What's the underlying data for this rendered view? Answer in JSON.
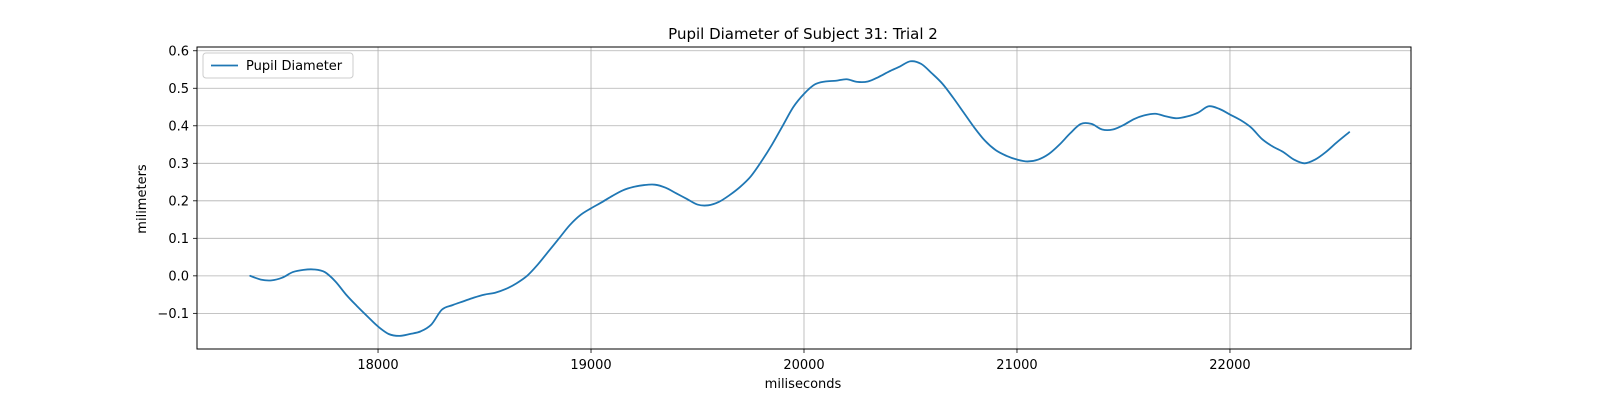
{
  "chart_data": {
    "type": "line",
    "title": "Pupil Diameter of Subject 31: Trial 2",
    "xlabel": "miliseconds",
    "ylabel": "milimeters",
    "xlim": [
      17150,
      22850
    ],
    "ylim": [
      -0.195,
      0.61
    ],
    "xticks": [
      18000,
      19000,
      20000,
      21000,
      22000
    ],
    "yticks": [
      -0.1,
      0.0,
      0.1,
      0.2,
      0.3,
      0.4,
      0.5,
      0.6
    ],
    "ytick_labels": [
      "−0.1",
      "0.0",
      "0.1",
      "0.2",
      "0.3",
      "0.4",
      "0.5",
      "0.6"
    ],
    "grid": true,
    "legend_position": "upper-left",
    "series": [
      {
        "name": "Pupil Diameter",
        "color": "#1f77b4",
        "x": [
          17400,
          17450,
          17500,
          17550,
          17600,
          17650,
          17700,
          17750,
          17800,
          17850,
          17900,
          17950,
          18000,
          18050,
          18100,
          18150,
          18200,
          18250,
          18300,
          18350,
          18400,
          18450,
          18500,
          18550,
          18600,
          18650,
          18700,
          18750,
          18800,
          18850,
          18900,
          18950,
          19000,
          19050,
          19100,
          19150,
          19200,
          19250,
          19300,
          19350,
          19400,
          19450,
          19500,
          19550,
          19600,
          19650,
          19700,
          19750,
          19800,
          19850,
          19900,
          19950,
          20000,
          20050,
          20100,
          20150,
          20200,
          20250,
          20300,
          20350,
          20400,
          20450,
          20500,
          20550,
          20600,
          20650,
          20700,
          20750,
          20800,
          20850,
          20900,
          20950,
          21000,
          21050,
          21100,
          21150,
          21200,
          21250,
          21300,
          21350,
          21400,
          21450,
          21500,
          21550,
          21600,
          21650,
          21700,
          21750,
          21800,
          21850,
          21900,
          21950,
          22000,
          22050,
          22100,
          22150,
          22200,
          22250,
          22300,
          22350,
          22400,
          22450,
          22500,
          22560
        ],
        "y": [
          0.0,
          -0.01,
          -0.012,
          -0.005,
          0.01,
          0.016,
          0.017,
          0.01,
          -0.015,
          -0.05,
          -0.08,
          -0.108,
          -0.135,
          -0.155,
          -0.16,
          -0.155,
          -0.148,
          -0.13,
          -0.09,
          -0.078,
          -0.068,
          -0.058,
          -0.05,
          -0.045,
          -0.035,
          -0.02,
          0.0,
          0.03,
          0.065,
          0.1,
          0.135,
          0.162,
          0.18,
          0.196,
          0.213,
          0.228,
          0.237,
          0.242,
          0.243,
          0.235,
          0.22,
          0.205,
          0.19,
          0.188,
          0.197,
          0.215,
          0.237,
          0.265,
          0.305,
          0.35,
          0.4,
          0.45,
          0.485,
          0.51,
          0.518,
          0.52,
          0.524,
          0.517,
          0.518,
          0.53,
          0.545,
          0.558,
          0.572,
          0.565,
          0.54,
          0.512,
          0.475,
          0.435,
          0.395,
          0.36,
          0.335,
          0.32,
          0.31,
          0.305,
          0.31,
          0.325,
          0.35,
          0.38,
          0.405,
          0.405,
          0.39,
          0.39,
          0.402,
          0.418,
          0.428,
          0.432,
          0.425,
          0.42,
          0.425,
          0.435,
          0.452,
          0.445,
          0.43,
          0.415,
          0.395,
          0.365,
          0.345,
          0.33,
          0.31,
          0.3,
          0.31,
          0.33,
          0.355,
          0.383
        ]
      }
    ]
  }
}
